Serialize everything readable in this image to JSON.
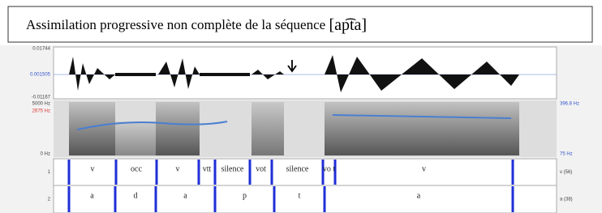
{
  "header": {
    "title": "Assimilation  progressive non complète de la séquence",
    "transcription": "[ap͡ta]"
  },
  "panel": {
    "wave_labels": [
      "0.01744",
      "0.001505",
      "-0.01167"
    ],
    "spectrogram_labels": [
      "5000 Hz",
      "2675 Hz",
      "0 Hz"
    ],
    "pitch_labels": [
      "396.8 Hz",
      "75 Hz"
    ],
    "tiers": [
      {
        "number": "1",
        "name": "v (56)",
        "intervals": [
          "v",
          "occ",
          "v",
          "vtt",
          "silence",
          "vot",
          "silence",
          "vo t",
          "v"
        ]
      },
      {
        "number": "2",
        "name": "a (38)",
        "intervals": [
          "a",
          "d",
          "a",
          "p",
          "t",
          "a"
        ]
      }
    ]
  }
}
